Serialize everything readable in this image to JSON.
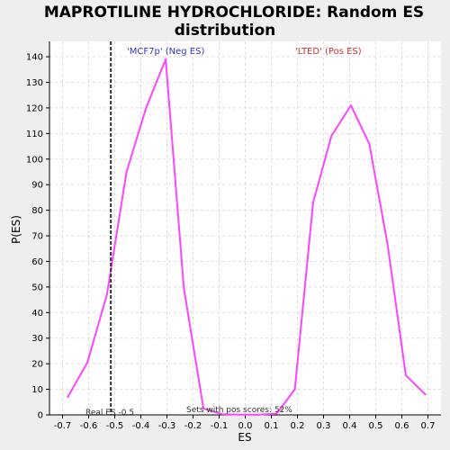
{
  "chart_data": {
    "type": "line",
    "title": "MAPROTILINE HYDROCHLORIDE: Random ES distribution",
    "title_lines": [
      "MAPROTILINE HYDROCHLORIDE: Random ES",
      "distribution"
    ],
    "xlabel": "ES",
    "ylabel": "P(ES)",
    "xlim": [
      -0.75,
      0.75
    ],
    "ylim": [
      0,
      146
    ],
    "x_ticks": [
      -0.7,
      -0.6,
      -0.5,
      -0.4,
      -0.3,
      -0.2,
      -0.1,
      0.0,
      0.1,
      0.2,
      0.3,
      0.4,
      0.5,
      0.6,
      0.7
    ],
    "y_ticks": [
      0,
      10,
      20,
      30,
      40,
      50,
      60,
      70,
      80,
      90,
      100,
      110,
      120,
      130,
      140
    ],
    "grid": true,
    "series": [
      {
        "color": "#ff44ff",
        "x": [
          -0.68,
          -0.605,
          -0.53,
          -0.455,
          -0.38,
          -0.305,
          -0.235,
          -0.16,
          -0.09,
          -0.02,
          0.05,
          0.12,
          0.19,
          0.26,
          0.33,
          0.405,
          0.475,
          0.545,
          0.615,
          0.69
        ],
        "y": [
          7,
          20.5,
          47,
          95,
          120,
          139,
          49.5,
          2.5,
          0.3,
          0.1,
          0.1,
          0.5,
          10,
          83,
          109,
          121,
          106,
          67,
          15.5,
          8
        ]
      }
    ],
    "annotations": {
      "neg_label": "'MCF7p' (Neg ES)",
      "pos_label": "'LTED' (Pos ES)",
      "real_es_label": "Real ES -0.5",
      "real_es_value": -0.515,
      "sets_label": "Sets with pos scores: 52%"
    },
    "colors": {
      "neg": "#3333cc",
      "pos": "#cc3333",
      "real_es_line": "#333333"
    }
  }
}
